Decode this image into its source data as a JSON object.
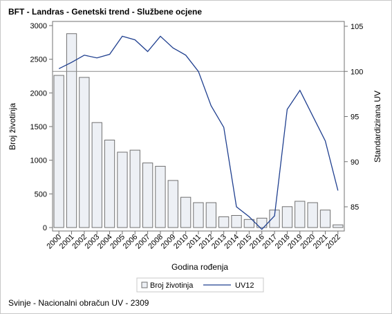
{
  "chart_data": {
    "type": "bar",
    "title": "BFT - Landras - Genetski trend - Službene ocjene",
    "footnote": "Svinje - Nacionalni obračun UV - 2309",
    "xlabel": "Godina rođenja",
    "ylabel_left": "Broj životinja",
    "ylabel_right": "Standardizirana UV",
    "categories": [
      "2000",
      "2001",
      "2002",
      "2003",
      "2004",
      "2005",
      "2006",
      "2007",
      "2008",
      "2009",
      "2010",
      "2011",
      "2012",
      "2013",
      "2014",
      "2015",
      "2016",
      "2017",
      "2018",
      "2019",
      "2020",
      "2021",
      "2022"
    ],
    "series": [
      {
        "name": "Broj životinja",
        "type": "bar",
        "axis": "left",
        "values": [
          2260,
          2880,
          2230,
          1560,
          1300,
          1120,
          1150,
          960,
          910,
          700,
          450,
          370,
          370,
          160,
          180,
          120,
          140,
          260,
          310,
          390,
          370,
          260,
          40
        ]
      },
      {
        "name": "UV12",
        "type": "line",
        "axis": "right",
        "values": [
          100.3,
          101.0,
          101.8,
          101.5,
          101.9,
          103.9,
          103.5,
          102.2,
          103.9,
          102.6,
          101.8,
          100.0,
          96.2,
          93.8,
          85.0,
          83.9,
          82.5,
          84.0,
          95.8,
          97.9,
          95.1,
          92.3,
          86.8
        ]
      }
    ],
    "ylim_left": [
      0,
      3000
    ],
    "yticks_left": [
      0,
      500,
      1000,
      1500,
      2000,
      2500,
      3000
    ],
    "ylim_right": [
      82.2,
      105.2
    ],
    "yticks_right": [
      85,
      90,
      95,
      100,
      105
    ],
    "reference_line_right": 100,
    "grid": false,
    "legend_position": "bottom",
    "colors": {
      "bar_fill": "#edf0f5",
      "bar_stroke": "#707070",
      "line": "#1f3f8f",
      "reference_line": "#8a8a8a",
      "axis": "#707070"
    }
  }
}
